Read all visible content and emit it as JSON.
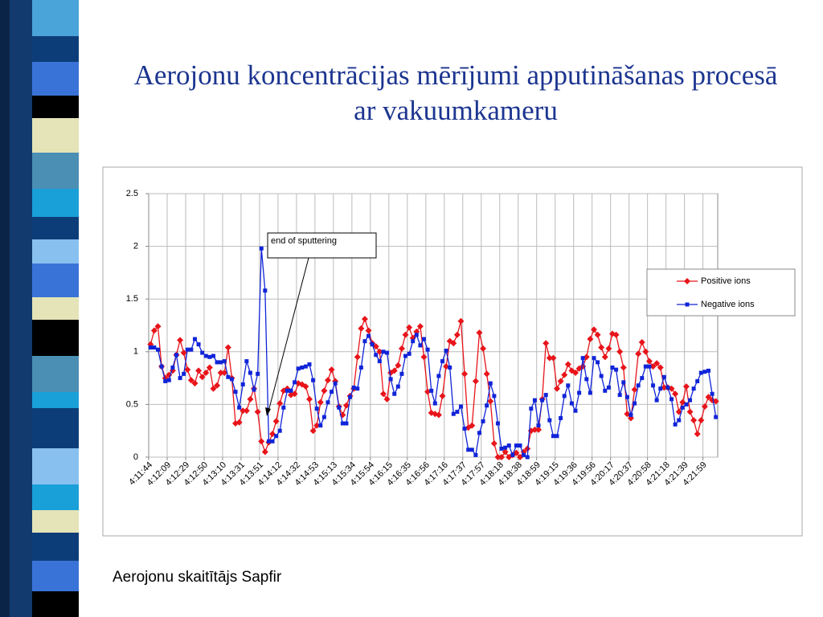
{
  "title": "Aerojonu koncentrācijas mērījumi apputināšanas procesā ar vakuumkameru",
  "caption": "Aerojonu skaitītājs Sapfir",
  "chart_data": {
    "type": "line",
    "annotation": "end of sputtering",
    "legend": "right",
    "grid": true,
    "ylim": [
      0,
      2.5
    ],
    "yticks": [
      0,
      0.5,
      1,
      1.5,
      2,
      2.5
    ],
    "categories": [
      "4:11:44",
      null,
      null,
      null,
      null,
      "4:12:09",
      null,
      null,
      null,
      null,
      "4:12:29",
      null,
      null,
      null,
      null,
      "4:12:50",
      null,
      null,
      null,
      null,
      "4:13:10",
      null,
      null,
      null,
      null,
      "4:13:31",
      null,
      null,
      null,
      null,
      "4:13:51",
      null,
      null,
      null,
      null,
      "4:14:12",
      null,
      null,
      null,
      null,
      "4:14:32",
      null,
      null,
      null,
      null,
      "4:14:53",
      null,
      null,
      null,
      null,
      "4:15:13",
      null,
      null,
      null,
      null,
      "4:15:34",
      null,
      null,
      null,
      null,
      "4:15:54",
      null,
      null,
      null,
      null,
      "4:16:15",
      null,
      null,
      null,
      null,
      "4:16:35",
      null,
      null,
      null,
      null,
      "4:16:56",
      null,
      null,
      null,
      null,
      "4:17:16",
      null,
      null,
      null,
      null,
      "4:17:37",
      null,
      null,
      null,
      null,
      "4:17:57",
      null,
      null,
      null,
      null,
      "4:18:18",
      null,
      null,
      null,
      null,
      "4:18:38",
      null,
      null,
      null,
      null,
      "4:18:59",
      null,
      null,
      null,
      null,
      "4:19:15",
      null,
      null,
      null,
      null,
      "4:19:36",
      null,
      null,
      null,
      null,
      "4:19:56",
      null,
      null,
      null,
      null,
      "4:20:17",
      null,
      null,
      null,
      null,
      "4:20:37",
      null,
      null,
      null,
      null,
      "4:20:58",
      null,
      null,
      null,
      null,
      "4:21:18",
      null,
      null,
      null,
      null,
      "4:21:39",
      null,
      null,
      null,
      null,
      "4:21:59",
      null,
      null,
      null
    ],
    "series": [
      {
        "name": "Positive ions",
        "color": "#e8141a",
        "marker": "diamond",
        "values": [
          1.07,
          1.2,
          1.24,
          0.86,
          0.75,
          0.78,
          0.82,
          0.97,
          1.11,
          0.99,
          0.83,
          0.73,
          0.7,
          0.82,
          0.76,
          0.8,
          0.85,
          0.65,
          0.68,
          0.8,
          0.8,
          1.04,
          0.75,
          0.32,
          0.33,
          0.44,
          0.44,
          0.55,
          0.65,
          0.43,
          0.15,
          0.05,
          0.14,
          0.22,
          0.34,
          0.51,
          0.63,
          0.65,
          0.59,
          0.6,
          0.7,
          0.69,
          0.67,
          0.55,
          0.25,
          0.3,
          0.52,
          0.63,
          0.73,
          0.83,
          0.72,
          0.48,
          0.4,
          0.49,
          0.58,
          0.65,
          0.95,
          1.22,
          1.31,
          1.2,
          1.08,
          1.05,
          1.0,
          0.6,
          0.55,
          0.8,
          0.82,
          0.87,
          1.03,
          1.16,
          1.23,
          1.13,
          1.19,
          1.24,
          0.95,
          0.62,
          0.42,
          0.41,
          0.4,
          0.58,
          0.86,
          1.1,
          1.08,
          1.16,
          1.29,
          0.79,
          0.28,
          0.3,
          0.72,
          1.18,
          1.03,
          0.79,
          0.53,
          0.13,
          0,
          0,
          0.05,
          0,
          0.02,
          0.04,
          0,
          0.05,
          0.08,
          0.25,
          0.26,
          0.26,
          0.55,
          1.08,
          0.94,
          0.94,
          0.65,
          0.72,
          0.78,
          0.88,
          0.82,
          0.8,
          0.84,
          0.86,
          0.95,
          1.12,
          1.21,
          1.16,
          1.04,
          0.95,
          1.03,
          1.17,
          1.16,
          1.0,
          0.85,
          0.41,
          0.37,
          0.64,
          0.98,
          1.09,
          1.0,
          0.91,
          0.86,
          0.89,
          0.85,
          0.66,
          0.66,
          0.65,
          0.6,
          0.43,
          0.52,
          0.67,
          0.43,
          0.35,
          0.22,
          0.35,
          0.48,
          0.57,
          0.54,
          0.53
        ]
      },
      {
        "name": "Negative ions",
        "color": "#1024d8",
        "marker": "square",
        "values": [
          1.04,
          1.04,
          1.02,
          0.86,
          0.72,
          0.73,
          0.85,
          0.97,
          0.75,
          0.79,
          1.02,
          1.02,
          1.12,
          1.07,
          0.99,
          0.96,
          0.95,
          0.96,
          0.9,
          0.9,
          0.91,
          0.76,
          0.74,
          0.62,
          0.47,
          0.69,
          0.91,
          0.8,
          0.64,
          0.79,
          1.98,
          1.58,
          0.15,
          0.15,
          0.2,
          0.25,
          0.47,
          0.63,
          0.63,
          0.71,
          0.84,
          0.85,
          0.86,
          0.88,
          0.73,
          0.46,
          0.3,
          0.38,
          0.52,
          0.62,
          0.7,
          0.47,
          0.32,
          0.32,
          0.57,
          0.66,
          0.65,
          0.85,
          1.1,
          1.15,
          1.07,
          0.97,
          0.91,
          1.0,
          0.99,
          0.74,
          0.6,
          0.67,
          0.79,
          0.96,
          0.98,
          1.1,
          1.16,
          1.06,
          1.12,
          1.02,
          0.63,
          0.51,
          0.77,
          0.91,
          1.01,
          0.85,
          0.41,
          0.43,
          0.48,
          0.27,
          0.07,
          0.07,
          0.02,
          0.23,
          0.34,
          0.49,
          0.7,
          0.58,
          0.32,
          0.08,
          0.09,
          0.11,
          0.02,
          0.11,
          0.11,
          0.02,
          0,
          0.46,
          0.54,
          0.3,
          0.54,
          0.59,
          0.35,
          0.2,
          0.2,
          0.37,
          0.58,
          0.68,
          0.51,
          0.44,
          0.61,
          0.94,
          0.74,
          0.61,
          0.94,
          0.9,
          0.77,
          0.63,
          0.66,
          0.85,
          0.83,
          0.59,
          0.71,
          0.57,
          0.4,
          0.51,
          0.68,
          0.75,
          0.86,
          0.86,
          0.68,
          0.54,
          0.65,
          0.76,
          0.66,
          0.55,
          0.31,
          0.35,
          0.47,
          0.5,
          0.54,
          0.65,
          0.72,
          0.8,
          0.81,
          0.82,
          0.6,
          0.38
        ]
      }
    ]
  }
}
